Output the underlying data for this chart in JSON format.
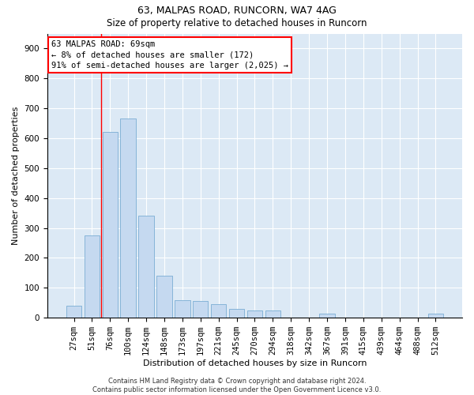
{
  "title1": "63, MALPAS ROAD, RUNCORN, WA7 4AG",
  "title2": "Size of property relative to detached houses in Runcorn",
  "xlabel": "Distribution of detached houses by size in Runcorn",
  "ylabel": "Number of detached properties",
  "categories": [
    "27sqm",
    "51sqm",
    "76sqm",
    "100sqm",
    "124sqm",
    "148sqm",
    "173sqm",
    "197sqm",
    "221sqm",
    "245sqm",
    "270sqm",
    "294sqm",
    "318sqm",
    "342sqm",
    "367sqm",
    "391sqm",
    "415sqm",
    "439sqm",
    "464sqm",
    "488sqm",
    "512sqm"
  ],
  "values": [
    40,
    275,
    620,
    665,
    340,
    140,
    60,
    55,
    45,
    30,
    25,
    25,
    0,
    0,
    15,
    0,
    0,
    0,
    0,
    0,
    15
  ],
  "bar_color": "#c5d9f0",
  "bar_edge_color": "#7aadd4",
  "vline_x": 1.5,
  "annotation_text_line1": "63 MALPAS ROAD: 69sqm",
  "annotation_text_line2": "← 8% of detached houses are smaller (172)",
  "annotation_text_line3": "91% of semi-detached houses are larger (2,025) →",
  "background_color": "#dce9f5",
  "grid_color": "#ffffff",
  "footer_text": "Contains HM Land Registry data © Crown copyright and database right 2024.\nContains public sector information licensed under the Open Government Licence v3.0.",
  "ylim": [
    0,
    950
  ],
  "yticks": [
    0,
    100,
    200,
    300,
    400,
    500,
    600,
    700,
    800,
    900
  ],
  "title1_fontsize": 9,
  "title2_fontsize": 8.5,
  "xlabel_fontsize": 8,
  "ylabel_fontsize": 8,
  "tick_fontsize": 7.5,
  "footer_fontsize": 6
}
